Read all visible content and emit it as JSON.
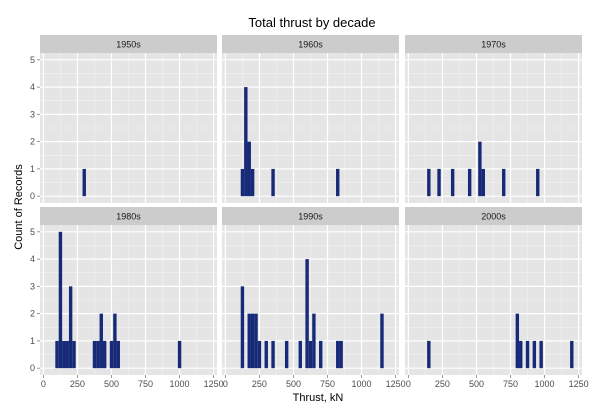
{
  "chart_data": {
    "type": "bar",
    "title": "Total thrust by decade",
    "xlabel": "Thrust, kN",
    "ylabel": "Count of Records",
    "xlim": [
      -25,
      1275
    ],
    "ylim": [
      -0.25,
      5.25
    ],
    "bin_width": 25,
    "x_ticks": [
      0,
      250,
      500,
      750,
      1000,
      1250
    ],
    "y_ticks": [
      0,
      1,
      2,
      3,
      4,
      5
    ],
    "grid": true,
    "bar_color": "#172a78",
    "panel_bg": "#e5e5e5",
    "strip_bg": "#cccccc",
    "panels": [
      {
        "label": "1950s",
        "bars": [
          {
            "x": 300,
            "count": 1
          }
        ]
      },
      {
        "label": "1960s",
        "bars": [
          {
            "x": 125,
            "count": 1
          },
          {
            "x": 150,
            "count": 4
          },
          {
            "x": 175,
            "count": 2
          },
          {
            "x": 200,
            "count": 1
          },
          {
            "x": 350,
            "count": 1
          },
          {
            "x": 825,
            "count": 1
          }
        ]
      },
      {
        "label": "1970s",
        "bars": [
          {
            "x": 150,
            "count": 1
          },
          {
            "x": 225,
            "count": 1
          },
          {
            "x": 325,
            "count": 1
          },
          {
            "x": 450,
            "count": 1
          },
          {
            "x": 525,
            "count": 2
          },
          {
            "x": 550,
            "count": 1
          },
          {
            "x": 700,
            "count": 1
          },
          {
            "x": 950,
            "count": 1
          }
        ]
      },
      {
        "label": "1980s",
        "bars": [
          {
            "x": 100,
            "count": 1
          },
          {
            "x": 125,
            "count": 5
          },
          {
            "x": 150,
            "count": 1
          },
          {
            "x": 175,
            "count": 1
          },
          {
            "x": 200,
            "count": 3
          },
          {
            "x": 225,
            "count": 1
          },
          {
            "x": 375,
            "count": 1
          },
          {
            "x": 400,
            "count": 1
          },
          {
            "x": 425,
            "count": 2
          },
          {
            "x": 450,
            "count": 1
          },
          {
            "x": 500,
            "count": 1
          },
          {
            "x": 525,
            "count": 2
          },
          {
            "x": 550,
            "count": 1
          },
          {
            "x": 1000,
            "count": 1
          }
        ]
      },
      {
        "label": "1990s",
        "bars": [
          {
            "x": 125,
            "count": 3
          },
          {
            "x": 175,
            "count": 2
          },
          {
            "x": 200,
            "count": 2
          },
          {
            "x": 225,
            "count": 2
          },
          {
            "x": 250,
            "count": 1
          },
          {
            "x": 300,
            "count": 1
          },
          {
            "x": 350,
            "count": 1
          },
          {
            "x": 450,
            "count": 1
          },
          {
            "x": 550,
            "count": 1
          },
          {
            "x": 600,
            "count": 4
          },
          {
            "x": 625,
            "count": 1
          },
          {
            "x": 650,
            "count": 2
          },
          {
            "x": 700,
            "count": 1
          },
          {
            "x": 825,
            "count": 1
          },
          {
            "x": 850,
            "count": 1
          },
          {
            "x": 1150,
            "count": 2
          }
        ]
      },
      {
        "label": "2000s",
        "bars": [
          {
            "x": 150,
            "count": 1
          },
          {
            "x": 800,
            "count": 2
          },
          {
            "x": 825,
            "count": 1
          },
          {
            "x": 875,
            "count": 1
          },
          {
            "x": 925,
            "count": 1
          },
          {
            "x": 975,
            "count": 1
          },
          {
            "x": 1200,
            "count": 1
          }
        ]
      }
    ]
  }
}
